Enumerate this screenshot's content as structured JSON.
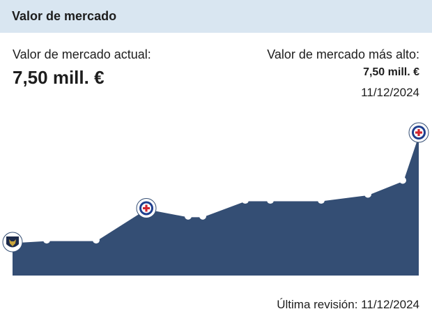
{
  "header": {
    "title": "Valor de mercado"
  },
  "current": {
    "label": "Valor de mercado actual:",
    "value": "7,50 mill. €"
  },
  "highest": {
    "label": "Valor de mercado más alto:",
    "value": "7,50 mill. €",
    "date": "11/12/2024"
  },
  "footer": {
    "label": "Última revisión:",
    "date": "11/12/2024"
  },
  "colors": {
    "header_bg": "#d9e6f1",
    "area_fill": "#344e74",
    "line": "#ffffff"
  },
  "chart_data": {
    "type": "area",
    "x_index": [
      0,
      1,
      2,
      3,
      4,
      5,
      6,
      7,
      8,
      9,
      10,
      11,
      12
    ],
    "values": [
      2.0,
      2.1,
      2.1,
      3.7,
      3.3,
      3.3,
      4.1,
      4.1,
      4.1,
      4.4,
      5.1,
      7.5,
      7.5
    ],
    "club_markers": [
      {
        "index": 0,
        "club": "pumas-crest-icon"
      },
      {
        "index": 3,
        "club": "cruz-azul-crest-icon"
      },
      {
        "index": 12,
        "club": "cruz-azul-crest-icon"
      }
    ],
    "grid": false
  }
}
